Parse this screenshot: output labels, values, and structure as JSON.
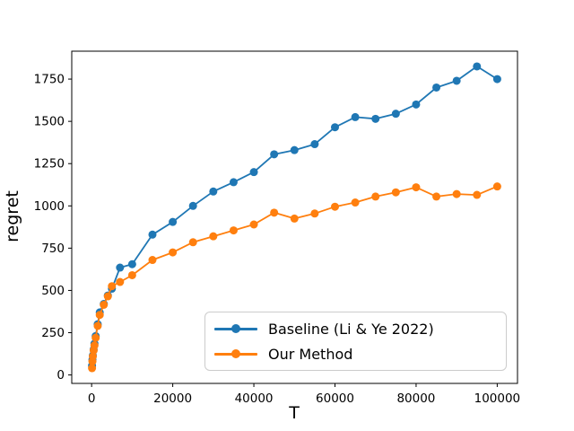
{
  "chart_data": {
    "type": "line",
    "title": "",
    "xlabel": "T",
    "ylabel": "regret",
    "x": [
      100,
      200,
      300,
      500,
      700,
      1000,
      1500,
      2000,
      3000,
      4000,
      5000,
      7000,
      10000,
      15000,
      20000,
      25000,
      30000,
      35000,
      40000,
      45000,
      50000,
      55000,
      60000,
      65000,
      70000,
      75000,
      80000,
      85000,
      90000,
      95000,
      100000
    ],
    "series": [
      {
        "name": "Baseline (Li & Ye 2022)",
        "color": "#1f77b4",
        "values": [
          55,
          90,
          115,
          150,
          185,
          230,
          300,
          370,
          420,
          470,
          510,
          635,
          655,
          830,
          905,
          1000,
          1085,
          1140,
          1200,
          1305,
          1330,
          1365,
          1465,
          1525,
          1515,
          1545,
          1600,
          1700,
          1740,
          1825,
          1750
        ]
      },
      {
        "name": "Our Method",
        "color": "#ff7f0e",
        "values": [
          40,
          80,
          110,
          145,
          175,
          220,
          290,
          355,
          415,
          465,
          525,
          550,
          590,
          680,
          725,
          785,
          820,
          855,
          890,
          960,
          925,
          955,
          995,
          1020,
          1055,
          1080,
          1110,
          1055,
          1070,
          1065,
          1115
        ]
      }
    ],
    "xticks": [
      0,
      20000,
      40000,
      60000,
      80000,
      100000
    ],
    "yticks": [
      0,
      250,
      500,
      750,
      1000,
      1250,
      1500,
      1750
    ],
    "xlim": [
      -4900,
      105000
    ],
    "ylim": [
      -50,
      1915
    ],
    "grid": false,
    "legend_position": "lower right",
    "marker": "circle",
    "axis_color": "#000000",
    "background_color": "#ffffff"
  },
  "legend": {
    "entries": [
      "Baseline (Li & Ye 2022)",
      "Our Method"
    ]
  }
}
